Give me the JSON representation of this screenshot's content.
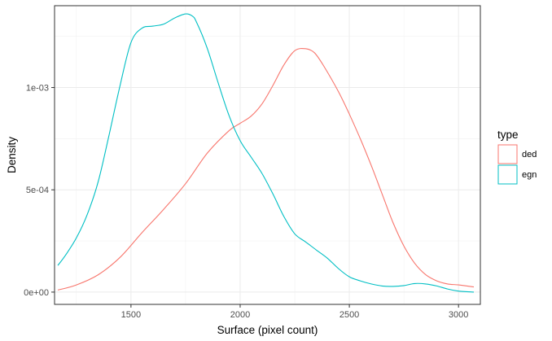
{
  "chart_data": {
    "type": "line",
    "title": "",
    "xlabel": "Surface (pixel count)",
    "ylabel": "Density",
    "xlim": [
      1150,
      3100
    ],
    "ylim": [
      -6e-05,
      0.0014
    ],
    "x_ticks": [
      1500,
      2000,
      2500,
      3000
    ],
    "x_tick_labels": [
      "1500",
      "2000",
      "2500",
      "3000"
    ],
    "y_ticks": [
      0,
      0.0005,
      0.001
    ],
    "y_tick_labels": [
      "0e+00",
      "5e-04",
      "1e-03"
    ],
    "grid": true,
    "theme": "bw",
    "legend": {
      "title": "type",
      "position": "right"
    },
    "series": [
      {
        "name": "ded",
        "color": "#F8766D",
        "x": [
          1165,
          1250,
          1350,
          1450,
          1550,
          1650,
          1750,
          1850,
          1950,
          2000,
          2050,
          2100,
          2150,
          2200,
          2250,
          2300,
          2340,
          2380,
          2450,
          2500,
          2550,
          2600,
          2650,
          2700,
          2750,
          2800,
          2850,
          2900,
          2950,
          3000,
          3070
        ],
        "y": [
          1e-05,
          3.5e-05,
          8.5e-05,
          0.00017,
          0.00029,
          0.000405,
          0.00053,
          0.00068,
          0.00079,
          0.000825,
          0.00086,
          0.00092,
          0.00101,
          0.00111,
          0.00118,
          0.00119,
          0.00117,
          0.00111,
          0.00098,
          0.00087,
          0.00075,
          0.00062,
          0.00048,
          0.00034,
          0.000225,
          0.00014,
          8.5e-05,
          5.5e-05,
          4e-05,
          3.5e-05,
          2.5e-05
        ]
      },
      {
        "name": "egn",
        "color": "#00BFC4",
        "x": [
          1165,
          1200,
          1250,
          1300,
          1350,
          1400,
          1450,
          1500,
          1550,
          1600,
          1650,
          1700,
          1750,
          1780,
          1800,
          1850,
          1900,
          1950,
          2000,
          2050,
          2100,
          2150,
          2200,
          2250,
          2300,
          2350,
          2400,
          2450,
          2500,
          2550,
          2600,
          2650,
          2700,
          2750,
          2800,
          2850,
          2900,
          2950,
          3000,
          3070
        ],
        "y": [
          0.00013,
          0.00018,
          0.000265,
          0.00038,
          0.00054,
          0.00077,
          0.00101,
          0.00122,
          0.00129,
          0.0013,
          0.00131,
          0.00134,
          0.00136,
          0.00135,
          0.00132,
          0.00119,
          0.00102,
          0.00086,
          0.00074,
          0.00066,
          0.00058,
          0.00048,
          0.00037,
          0.000285,
          0.000245,
          0.000205,
          0.000165,
          0.000115,
          7.5e-05,
          5.5e-05,
          4e-05,
          3e-05,
          2.8e-05,
          3.2e-05,
          4.2e-05,
          4e-05,
          3e-05,
          1.5e-05,
          5e-06,
          0.0
        ]
      }
    ]
  }
}
